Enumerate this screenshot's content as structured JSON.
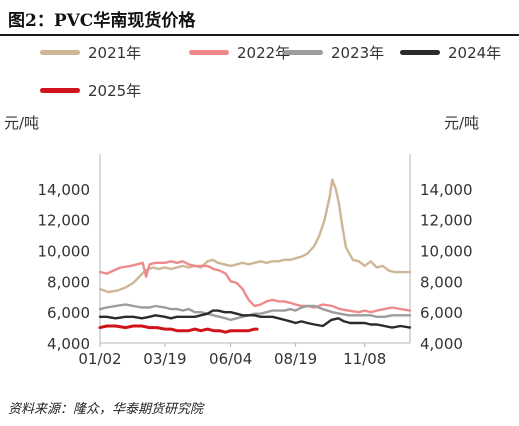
{
  "title": "图2：PVC华南现货价格",
  "source": "资料来源：隆众，华泰期货研究院",
  "unit_left": "元/吨",
  "unit_right": "元/吨",
  "chart_data": {
    "type": "line",
    "title": "图2：PVC华南现货价格",
    "xlabel": "",
    "ylabel": "元/吨",
    "x_ticks": [
      "01/02",
      "03/19",
      "06/04",
      "08/19",
      "11/08"
    ],
    "x_domain": [
      "01/02",
      "12/31"
    ],
    "ylim": [
      4000,
      16000
    ],
    "y_ticks": [
      4000,
      6000,
      8000,
      10000,
      12000,
      14000
    ],
    "y_tick_labels": [
      "4,000",
      "6,000",
      "8,000",
      "10,000",
      "12,000",
      "14,000"
    ],
    "right_axis_mirror": true,
    "grid": false,
    "legend_position": "top",
    "series": [
      {
        "name": "2021年",
        "color": "#cdb796",
        "points": [
          [
            "01/02",
            7500
          ],
          [
            "01/12",
            7300
          ],
          [
            "01/22",
            7400
          ],
          [
            "02/01",
            7600
          ],
          [
            "02/10",
            7900
          ],
          [
            "02/24",
            8700
          ],
          [
            "03/05",
            8900
          ],
          [
            "03/12",
            8800
          ],
          [
            "03/19",
            8900
          ],
          [
            "03/26",
            8800
          ],
          [
            "04/02",
            8900
          ],
          [
            "04/09",
            9000
          ],
          [
            "04/16",
            8900
          ],
          [
            "04/23",
            9000
          ],
          [
            "04/30",
            8900
          ],
          [
            "05/08",
            9300
          ],
          [
            "05/14",
            9400
          ],
          [
            "05/20",
            9200
          ],
          [
            "05/28",
            9100
          ],
          [
            "06/04",
            9000
          ],
          [
            "06/11",
            9100
          ],
          [
            "06/18",
            9200
          ],
          [
            "06/25",
            9100
          ],
          [
            "07/02",
            9200
          ],
          [
            "07/09",
            9300
          ],
          [
            "07/16",
            9200
          ],
          [
            "07/23",
            9300
          ],
          [
            "07/30",
            9300
          ],
          [
            "08/06",
            9400
          ],
          [
            "08/13",
            9400
          ],
          [
            "08/19",
            9500
          ],
          [
            "08/26",
            9600
          ],
          [
            "09/02",
            9800
          ],
          [
            "09/10",
            10300
          ],
          [
            "09/16",
            11000
          ],
          [
            "09/22",
            12000
          ],
          [
            "09/28",
            13500
          ],
          [
            "10/01",
            14600
          ],
          [
            "10/05",
            14000
          ],
          [
            "10/09",
            13000
          ],
          [
            "10/13",
            11500
          ],
          [
            "10/17",
            10200
          ],
          [
            "10/21",
            9800
          ],
          [
            "10/25",
            9400
          ],
          [
            "11/01",
            9300
          ],
          [
            "11/08",
            9000
          ],
          [
            "11/15",
            9300
          ],
          [
            "11/22",
            8900
          ],
          [
            "11/29",
            9000
          ],
          [
            "12/06",
            8700
          ],
          [
            "12/13",
            8600
          ],
          [
            "12/20",
            8600
          ],
          [
            "12/31",
            8600
          ]
        ]
      },
      {
        "name": "2022年",
        "color": "#ef8a8c",
        "points": [
          [
            "01/02",
            8600
          ],
          [
            "01/10",
            8500
          ],
          [
            "01/18",
            8700
          ],
          [
            "01/26",
            8900
          ],
          [
            "02/07",
            9000
          ],
          [
            "02/14",
            9100
          ],
          [
            "02/21",
            9200
          ],
          [
            "02/25",
            8300
          ],
          [
            "03/01",
            9100
          ],
          [
            "03/08",
            9200
          ],
          [
            "03/19",
            9200
          ],
          [
            "03/26",
            9300
          ],
          [
            "04/02",
            9200
          ],
          [
            "04/09",
            9300
          ],
          [
            "04/16",
            9100
          ],
          [
            "04/23",
            9000
          ],
          [
            "04/30",
            9000
          ],
          [
            "05/08",
            9000
          ],
          [
            "05/15",
            8800
          ],
          [
            "05/22",
            8700
          ],
          [
            "05/29",
            8500
          ],
          [
            "06/04",
            8000
          ],
          [
            "06/11",
            7900
          ],
          [
            "06/18",
            7500
          ],
          [
            "06/25",
            6800
          ],
          [
            "07/02",
            6400
          ],
          [
            "07/09",
            6500
          ],
          [
            "07/16",
            6700
          ],
          [
            "07/23",
            6800
          ],
          [
            "07/30",
            6700
          ],
          [
            "08/06",
            6700
          ],
          [
            "08/13",
            6600
          ],
          [
            "08/19",
            6500
          ],
          [
            "08/26",
            6400
          ],
          [
            "09/02",
            6400
          ],
          [
            "09/10",
            6300
          ],
          [
            "09/20",
            6500
          ],
          [
            "10/01",
            6400
          ],
          [
            "10/10",
            6200
          ],
          [
            "10/20",
            6100
          ],
          [
            "11/01",
            6000
          ],
          [
            "11/08",
            6100
          ],
          [
            "11/15",
            6000
          ],
          [
            "11/22",
            6100
          ],
          [
            "12/01",
            6200
          ],
          [
            "12/10",
            6300
          ],
          [
            "12/20",
            6200
          ],
          [
            "12/31",
            6100
          ]
        ]
      },
      {
        "name": "2023年",
        "color": "#9c9c9c",
        "points": [
          [
            "01/02",
            6200
          ],
          [
            "01/10",
            6300
          ],
          [
            "01/20",
            6400
          ],
          [
            "02/01",
            6500
          ],
          [
            "02/10",
            6400
          ],
          [
            "02/20",
            6300
          ],
          [
            "03/01",
            6300
          ],
          [
            "03/08",
            6400
          ],
          [
            "03/19",
            6300
          ],
          [
            "03/26",
            6200
          ],
          [
            "04/02",
            6200
          ],
          [
            "04/09",
            6100
          ],
          [
            "04/16",
            6200
          ],
          [
            "04/23",
            6000
          ],
          [
            "04/30",
            6000
          ],
          [
            "05/08",
            5900
          ],
          [
            "05/15",
            5800
          ],
          [
            "05/22",
            5700
          ],
          [
            "05/29",
            5600
          ],
          [
            "06/04",
            5500
          ],
          [
            "06/11",
            5600
          ],
          [
            "06/18",
            5700
          ],
          [
            "06/25",
            5800
          ],
          [
            "07/02",
            5900
          ],
          [
            "07/09",
            5900
          ],
          [
            "07/16",
            6000
          ],
          [
            "07/23",
            6100
          ],
          [
            "07/30",
            6100
          ],
          [
            "08/06",
            6100
          ],
          [
            "08/13",
            6200
          ],
          [
            "08/19",
            6100
          ],
          [
            "08/26",
            6300
          ],
          [
            "09/02",
            6400
          ],
          [
            "09/10",
            6400
          ],
          [
            "09/20",
            6200
          ],
          [
            "10/01",
            6000
          ],
          [
            "10/10",
            5900
          ],
          [
            "10/20",
            5800
          ],
          [
            "11/01",
            5800
          ],
          [
            "11/08",
            5800
          ],
          [
            "11/15",
            5800
          ],
          [
            "11/22",
            5700
          ],
          [
            "12/01",
            5700
          ],
          [
            "12/10",
            5800
          ],
          [
            "12/20",
            5800
          ],
          [
            "12/31",
            5800
          ]
        ]
      },
      {
        "name": "2024年",
        "color": "#2b2b2b",
        "points": [
          [
            "01/02",
            5700
          ],
          [
            "01/10",
            5700
          ],
          [
            "01/20",
            5600
          ],
          [
            "02/01",
            5700
          ],
          [
            "02/10",
            5700
          ],
          [
            "02/20",
            5600
          ],
          [
            "03/01",
            5700
          ],
          [
            "03/08",
            5800
          ],
          [
            "03/19",
            5700
          ],
          [
            "03/26",
            5600
          ],
          [
            "04/02",
            5700
          ],
          [
            "04/09",
            5700
          ],
          [
            "04/16",
            5700
          ],
          [
            "04/23",
            5700
          ],
          [
            "04/30",
            5800
          ],
          [
            "05/08",
            5900
          ],
          [
            "05/14",
            6100
          ],
          [
            "05/20",
            6100
          ],
          [
            "05/28",
            6000
          ],
          [
            "06/04",
            6000
          ],
          [
            "06/11",
            5900
          ],
          [
            "06/18",
            5800
          ],
          [
            "06/25",
            5800
          ],
          [
            "07/02",
            5800
          ],
          [
            "07/09",
            5700
          ],
          [
            "07/16",
            5700
          ],
          [
            "07/23",
            5700
          ],
          [
            "07/30",
            5600
          ],
          [
            "08/06",
            5500
          ],
          [
            "08/13",
            5400
          ],
          [
            "08/19",
            5300
          ],
          [
            "08/26",
            5400
          ],
          [
            "09/02",
            5300
          ],
          [
            "09/10",
            5200
          ],
          [
            "09/20",
            5100
          ],
          [
            "09/30",
            5500
          ],
          [
            "10/08",
            5600
          ],
          [
            "10/15",
            5400
          ],
          [
            "10/22",
            5300
          ],
          [
            "11/01",
            5300
          ],
          [
            "11/08",
            5300
          ],
          [
            "11/15",
            5200
          ],
          [
            "11/22",
            5200
          ],
          [
            "12/01",
            5100
          ],
          [
            "12/10",
            5000
          ],
          [
            "12/20",
            5100
          ],
          [
            "12/31",
            5000
          ]
        ]
      },
      {
        "name": "2025年",
        "color": "#d0121b",
        "points": [
          [
            "01/02",
            5000
          ],
          [
            "01/10",
            5100
          ],
          [
            "01/20",
            5100
          ],
          [
            "02/01",
            5000
          ],
          [
            "02/10",
            5100
          ],
          [
            "02/20",
            5100
          ],
          [
            "03/01",
            5000
          ],
          [
            "03/10",
            5000
          ],
          [
            "03/19",
            4900
          ],
          [
            "03/26",
            4900
          ],
          [
            "04/02",
            4800
          ],
          [
            "04/09",
            4800
          ],
          [
            "04/16",
            4800
          ],
          [
            "04/23",
            4900
          ],
          [
            "04/30",
            4800
          ],
          [
            "05/08",
            4900
          ],
          [
            "05/15",
            4800
          ],
          [
            "05/22",
            4800
          ],
          [
            "05/29",
            4700
          ],
          [
            "06/04",
            4800
          ],
          [
            "06/11",
            4800
          ],
          [
            "06/18",
            4800
          ],
          [
            "06/25",
            4800
          ],
          [
            "07/02",
            4900
          ],
          [
            "07/05",
            4900
          ]
        ]
      }
    ]
  }
}
